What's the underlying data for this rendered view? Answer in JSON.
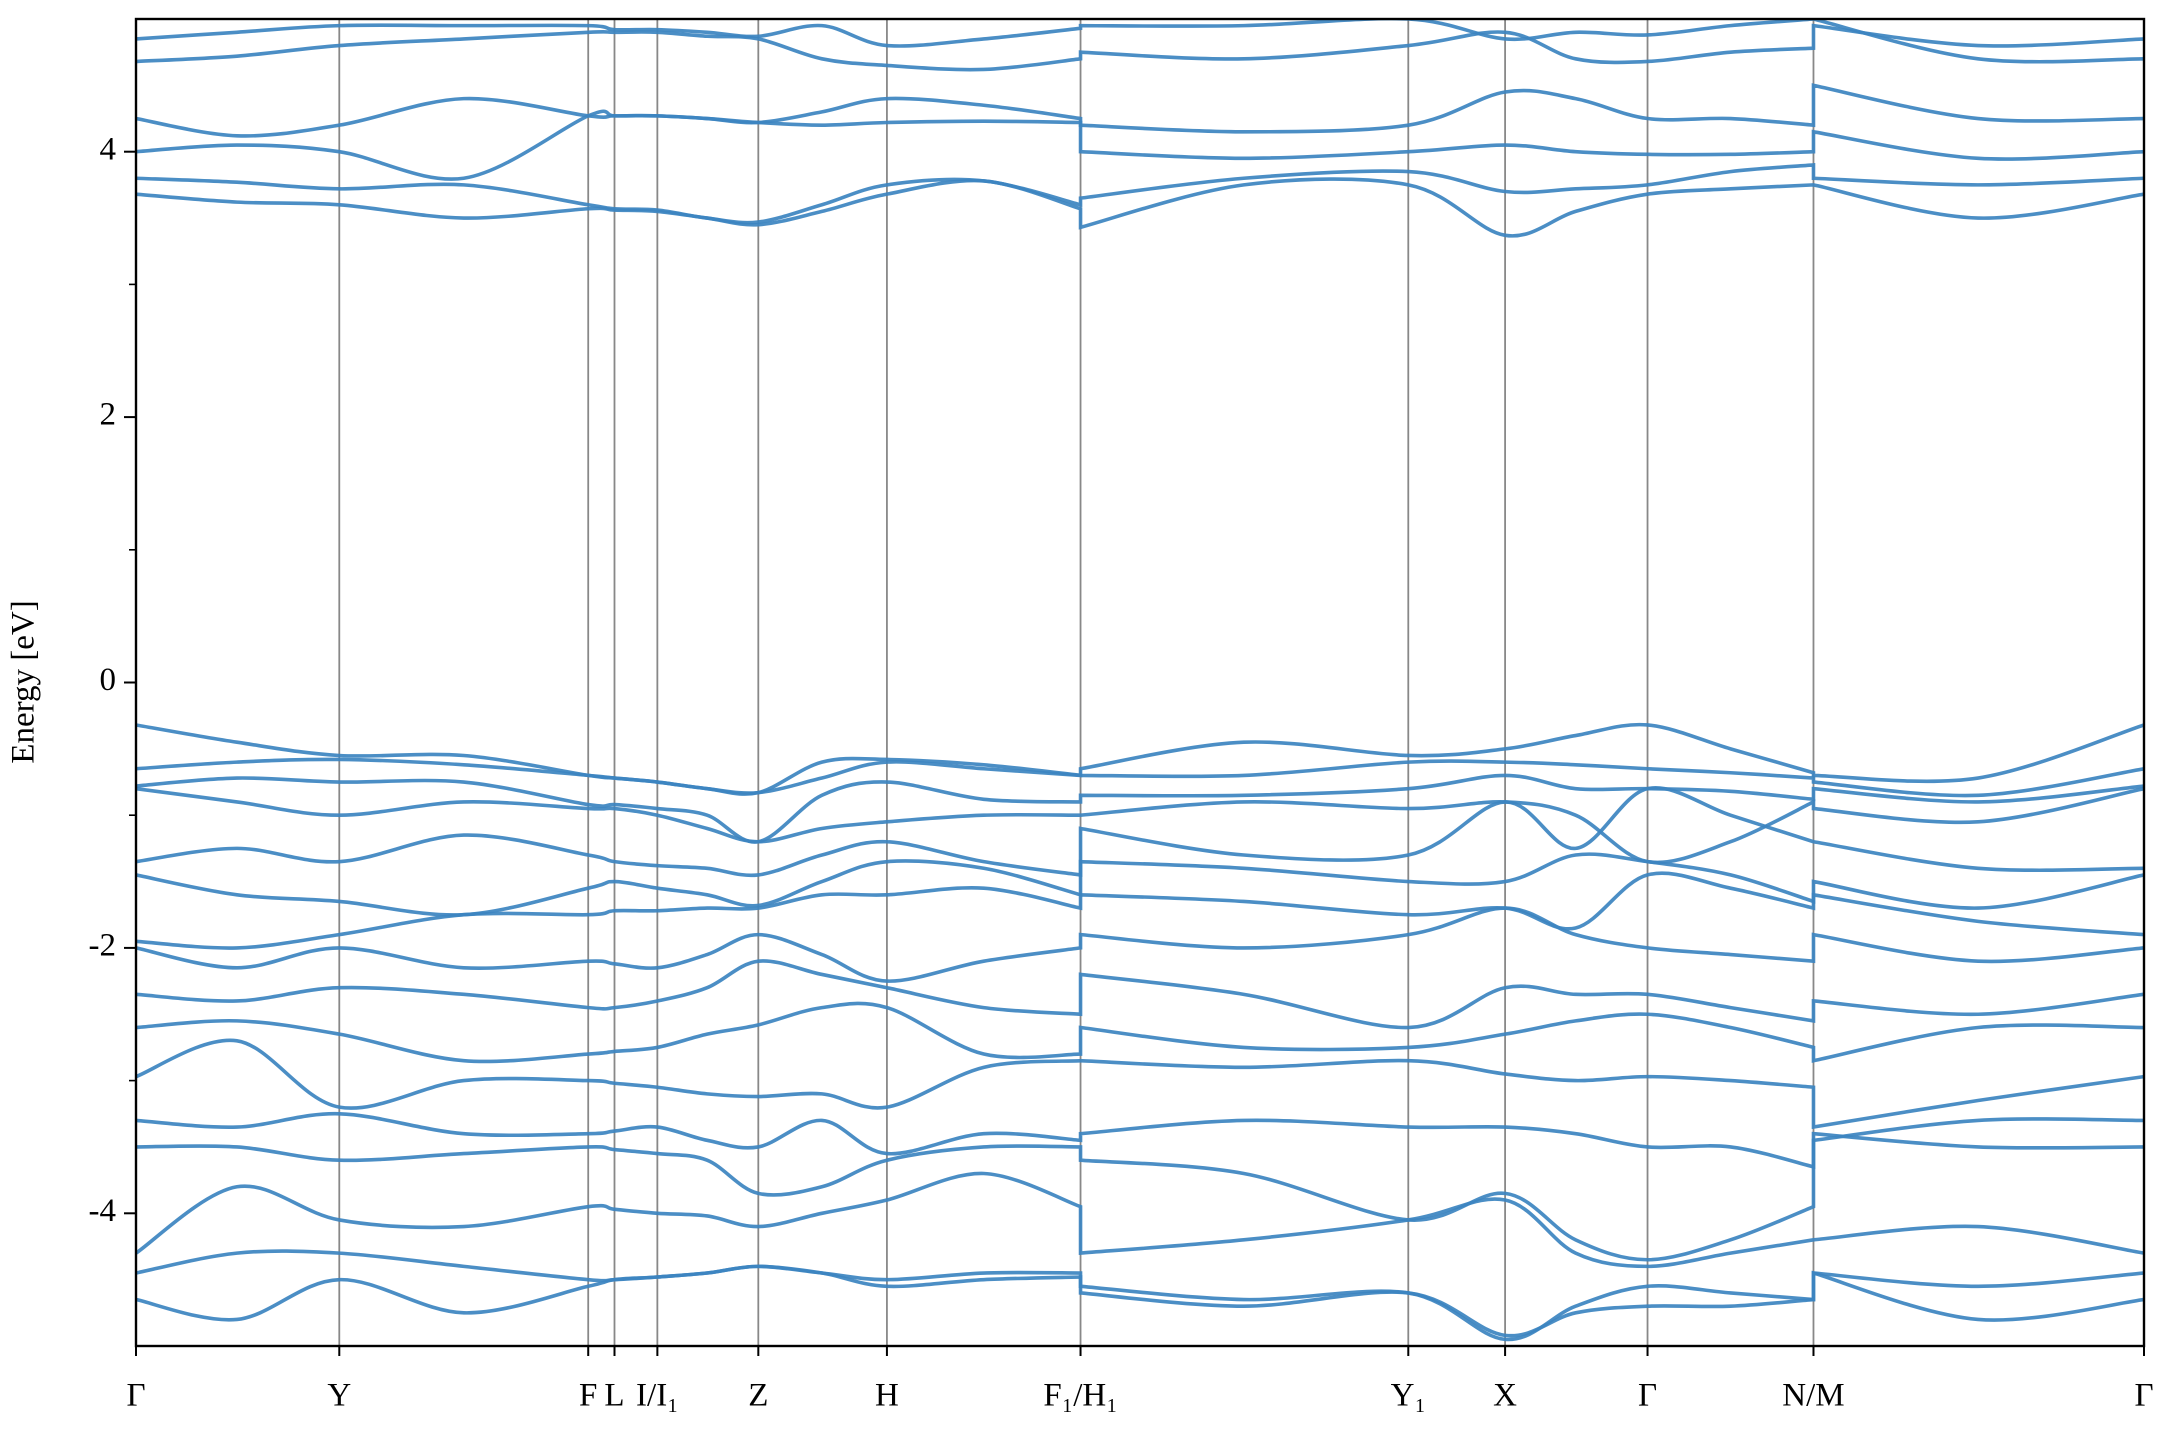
{
  "chart_data": {
    "type": "line",
    "ylabel": "Energy [eV]",
    "color": "#3c84c0",
    "x": [
      0,
      73,
      147,
      237,
      327,
      346,
      377,
      413,
      450,
      496,
      543,
      613,
      683,
      683,
      801,
      920,
      990,
      1041,
      1093,
      1153,
      1213,
      1213,
      1332,
      1452
    ],
    "xlim": [
      0,
      1452
    ],
    "xticks": [
      {
        "value": 0,
        "label": "Γ"
      },
      {
        "value": 147,
        "label": "Y"
      },
      {
        "value": 327,
        "label": "F"
      },
      {
        "value": 346,
        "label": "L"
      },
      {
        "value": 377,
        "label": "I/I₁"
      },
      {
        "value": 450,
        "label": "Z"
      },
      {
        "value": 543,
        "label": "H"
      },
      {
        "value": 683,
        "label": "F₁/H₁"
      },
      {
        "value": 920,
        "label": "Y₁"
      },
      {
        "value": 990,
        "label": "X"
      },
      {
        "value": 1093,
        "label": "Γ"
      },
      {
        "value": 1213,
        "label": "N/M"
      },
      {
        "value": 1452,
        "label": "Γ"
      }
    ],
    "ylim": [
      -5,
      5
    ],
    "yticks": [
      -4,
      -2,
      0,
      2,
      4
    ],
    "yticks_minor": [
      -3,
      -1,
      1,
      3
    ],
    "series": [
      {
        "values": [
          3.68,
          3.62,
          3.6,
          3.5,
          3.57,
          3.56,
          3.55,
          3.5,
          3.45,
          3.55,
          3.68,
          3.78,
          3.57,
          3.43,
          3.75,
          3.75,
          3.37,
          3.55,
          3.68,
          3.72,
          3.75,
          3.75,
          3.5,
          3.68
        ]
      },
      {
        "values": [
          3.8,
          3.77,
          3.72,
          3.75,
          3.6,
          3.57,
          3.56,
          3.5,
          3.47,
          3.6,
          3.75,
          3.78,
          3.6,
          3.65,
          3.8,
          3.85,
          3.7,
          3.72,
          3.75,
          3.85,
          3.9,
          3.8,
          3.75,
          3.8
        ]
      },
      {
        "values": [
          4.0,
          4.05,
          4.0,
          3.8,
          4.27,
          4.27,
          4.27,
          4.25,
          4.22,
          4.3,
          4.4,
          4.35,
          4.25,
          4.0,
          3.95,
          4.0,
          4.05,
          4.0,
          3.98,
          3.98,
          4.0,
          4.15,
          3.95,
          4.0
        ]
      },
      {
        "values": [
          4.25,
          4.12,
          4.2,
          4.4,
          4.27,
          4.27,
          4.27,
          4.25,
          4.22,
          4.2,
          4.22,
          4.23,
          4.22,
          4.2,
          4.15,
          4.2,
          4.45,
          4.4,
          4.25,
          4.25,
          4.2,
          4.5,
          4.25,
          4.25
        ]
      },
      {
        "values": [
          4.68,
          4.72,
          4.8,
          4.85,
          4.9,
          4.9,
          4.9,
          4.87,
          4.85,
          4.7,
          4.65,
          4.62,
          4.7,
          4.75,
          4.7,
          4.8,
          4.9,
          4.7,
          4.68,
          4.75,
          4.78,
          4.95,
          4.8,
          4.85
        ]
      },
      {
        "values": [
          4.85,
          4.9,
          4.95,
          4.95,
          4.95,
          4.92,
          4.92,
          4.9,
          4.87,
          4.95,
          4.8,
          4.85,
          4.93,
          4.95,
          4.95,
          5.0,
          4.85,
          4.9,
          4.88,
          4.95,
          5.0,
          5.0,
          4.7,
          4.7
        ]
      },
      {
        "values": [
          -0.32,
          -0.45,
          -0.55,
          -0.55,
          -0.7,
          -0.72,
          -0.75,
          -0.8,
          -0.83,
          -0.6,
          -0.58,
          -0.62,
          -0.7,
          -0.65,
          -0.45,
          -0.55,
          -0.5,
          -0.4,
          -0.32,
          -0.5,
          -0.68,
          -0.7,
          -0.72,
          -0.32
        ]
      },
      {
        "values": [
          -0.65,
          -0.6,
          -0.58,
          -0.62,
          -0.7,
          -0.72,
          -0.75,
          -0.8,
          -0.83,
          -0.72,
          -0.6,
          -0.65,
          -0.7,
          -0.7,
          -0.7,
          -0.6,
          -0.6,
          -0.62,
          -0.65,
          -0.68,
          -0.72,
          -0.75,
          -0.85,
          -0.65
        ]
      },
      {
        "values": [
          -0.78,
          -0.72,
          -0.75,
          -0.75,
          -0.92,
          -0.92,
          -0.95,
          -1.0,
          -1.2,
          -0.85,
          -0.75,
          -0.88,
          -0.9,
          -0.85,
          -0.85,
          -0.8,
          -0.7,
          -0.8,
          -0.8,
          -0.82,
          -0.88,
          -0.8,
          -0.9,
          -0.78
        ]
      },
      {
        "values": [
          -0.8,
          -0.9,
          -1.0,
          -0.9,
          -0.95,
          -0.95,
          -1.0,
          -1.1,
          -1.2,
          -1.1,
          -1.05,
          -1.0,
          -1.0,
          -1.0,
          -0.9,
          -0.95,
          -0.9,
          -1.0,
          -1.35,
          -1.2,
          -0.9,
          -0.95,
          -1.05,
          -0.8
        ]
      },
      {
        "values": [
          -1.35,
          -1.25,
          -1.35,
          -1.15,
          -1.3,
          -1.35,
          -1.38,
          -1.4,
          -1.45,
          -1.3,
          -1.2,
          -1.35,
          -1.45,
          -1.1,
          -1.3,
          -1.3,
          -0.9,
          -1.25,
          -0.8,
          -1.0,
          -1.2,
          -1.2,
          -1.4,
          -1.4
        ]
      },
      {
        "values": [
          -1.45,
          -1.6,
          -1.65,
          -1.75,
          -1.55,
          -1.5,
          -1.55,
          -1.6,
          -1.68,
          -1.5,
          -1.35,
          -1.4,
          -1.6,
          -1.35,
          -1.4,
          -1.5,
          -1.5,
          -1.3,
          -1.35,
          -1.45,
          -1.65,
          -1.5,
          -1.7,
          -1.45
        ]
      },
      {
        "values": [
          -1.95,
          -2.0,
          -1.9,
          -1.75,
          -1.75,
          -1.72,
          -1.72,
          -1.7,
          -1.7,
          -1.6,
          -1.6,
          -1.55,
          -1.7,
          -1.6,
          -1.65,
          -1.75,
          -1.7,
          -1.85,
          -1.45,
          -1.55,
          -1.7,
          -1.6,
          -1.8,
          -1.9
        ]
      },
      {
        "values": [
          -2.0,
          -2.15,
          -2.0,
          -2.15,
          -2.1,
          -2.12,
          -2.15,
          -2.05,
          -1.9,
          -2.05,
          -2.25,
          -2.1,
          -2.0,
          -1.9,
          -2.0,
          -1.9,
          -1.7,
          -1.9,
          -2.0,
          -2.05,
          -2.1,
          -1.9,
          -2.1,
          -2.0
        ]
      },
      {
        "values": [
          -2.35,
          -2.4,
          -2.3,
          -2.35,
          -2.45,
          -2.45,
          -2.4,
          -2.3,
          -2.1,
          -2.2,
          -2.3,
          -2.45,
          -2.5,
          -2.2,
          -2.35,
          -2.6,
          -2.3,
          -2.35,
          -2.35,
          -2.45,
          -2.55,
          -2.4,
          -2.5,
          -2.35
        ]
      },
      {
        "values": [
          -2.6,
          -2.55,
          -2.65,
          -2.85,
          -2.8,
          -2.78,
          -2.75,
          -2.65,
          -2.58,
          -2.45,
          -2.45,
          -2.8,
          -2.8,
          -2.6,
          -2.75,
          -2.75,
          -2.65,
          -2.55,
          -2.5,
          -2.6,
          -2.75,
          -2.85,
          -2.6,
          -2.6
        ]
      },
      {
        "values": [
          -2.97,
          -2.7,
          -3.2,
          -3.0,
          -3.0,
          -3.02,
          -3.05,
          -3.1,
          -3.12,
          -3.1,
          -3.2,
          -2.9,
          -2.85,
          -2.85,
          -2.9,
          -2.85,
          -2.95,
          -3.0,
          -2.97,
          -3.0,
          -3.05,
          -3.35,
          -3.15,
          -2.97
        ]
      },
      {
        "values": [
          -3.3,
          -3.35,
          -3.25,
          -3.4,
          -3.4,
          -3.38,
          -3.35,
          -3.45,
          -3.5,
          -3.3,
          -3.55,
          -3.4,
          -3.45,
          -3.4,
          -3.3,
          -3.35,
          -3.35,
          -3.4,
          -3.5,
          -3.5,
          -3.65,
          -3.45,
          -3.3,
          -3.3
        ]
      },
      {
        "values": [
          -3.5,
          -3.5,
          -3.6,
          -3.55,
          -3.5,
          -3.52,
          -3.55,
          -3.6,
          -3.85,
          -3.8,
          -3.6,
          -3.5,
          -3.5,
          -3.6,
          -3.7,
          -4.05,
          -3.85,
          -4.2,
          -4.35,
          -4.2,
          -3.95,
          -3.4,
          -3.5,
          -3.5
        ]
      },
      {
        "values": [
          -4.3,
          -3.8,
          -4.05,
          -4.1,
          -3.95,
          -3.97,
          -4.0,
          -4.02,
          -4.1,
          -4.0,
          -3.9,
          -3.7,
          -3.95,
          -4.3,
          -4.2,
          -4.05,
          -3.9,
          -4.3,
          -4.4,
          -4.3,
          -4.2,
          -4.2,
          -4.1,
          -4.3
        ]
      },
      {
        "values": [
          -4.45,
          -4.3,
          -4.3,
          -4.4,
          -4.5,
          -4.5,
          -4.48,
          -4.45,
          -4.4,
          -4.45,
          -4.5,
          -4.45,
          -4.45,
          -4.55,
          -4.65,
          -4.6,
          -4.95,
          -4.7,
          -4.55,
          -4.6,
          -4.65,
          -4.45,
          -4.55,
          -4.45
        ]
      },
      {
        "values": [
          -4.65,
          -4.8,
          -4.5,
          -4.75,
          -4.55,
          -4.5,
          -4.48,
          -4.45,
          -4.4,
          -4.45,
          -4.55,
          -4.5,
          -4.48,
          -4.6,
          -4.7,
          -4.6,
          -4.92,
          -4.75,
          -4.7,
          -4.7,
          -4.65,
          -4.45,
          -4.8,
          -4.65
        ]
      }
    ]
  }
}
